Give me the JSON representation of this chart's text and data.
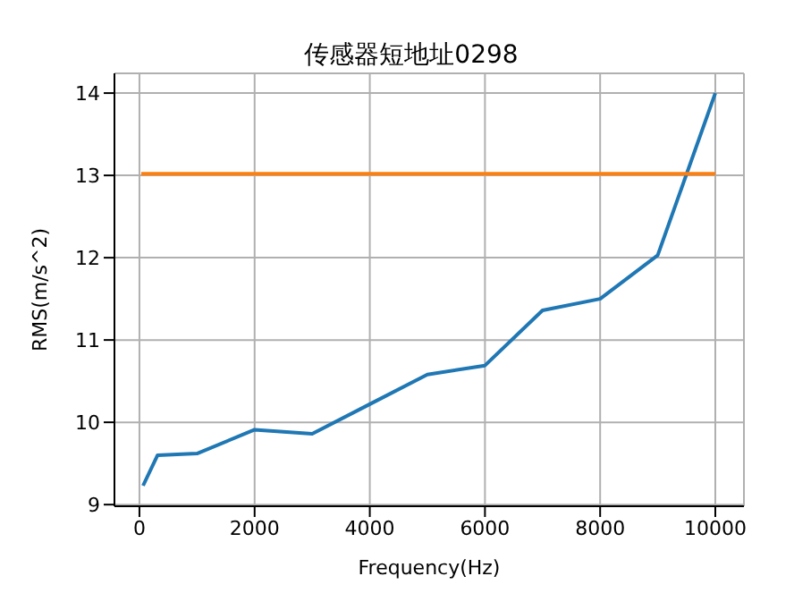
{
  "chart_data": {
    "type": "line",
    "title": "传感器短地址0298",
    "xlabel": "Frequency(Hz)",
    "ylabel": "RMS(m/s^2)",
    "series": [
      {
        "color": "#1f77b4",
        "x": [
          63,
          315,
          1000,
          2000,
          3000,
          4000,
          5000,
          6000,
          7000,
          8000,
          9000,
          10000
        ],
        "values": [
          9.23,
          9.6,
          9.62,
          9.91,
          9.86,
          10.22,
          10.58,
          10.69,
          11.36,
          11.5,
          12.03,
          14.0
        ]
      },
      {
        "color": "#ff7f0e",
        "x": [
          31,
          10000
        ],
        "values": [
          13.02,
          13.02
        ]
      }
    ],
    "xlim": [
      -434,
      10497
    ],
    "xticks": [
      0,
      2000,
      4000,
      6000,
      8000,
      10000
    ],
    "ylim": [
      8.98,
      14.24
    ],
    "yticks": [
      9,
      10,
      11,
      12,
      13,
      14
    ],
    "grid": true,
    "legend": false,
    "marker": "none",
    "line_style": "solid"
  }
}
